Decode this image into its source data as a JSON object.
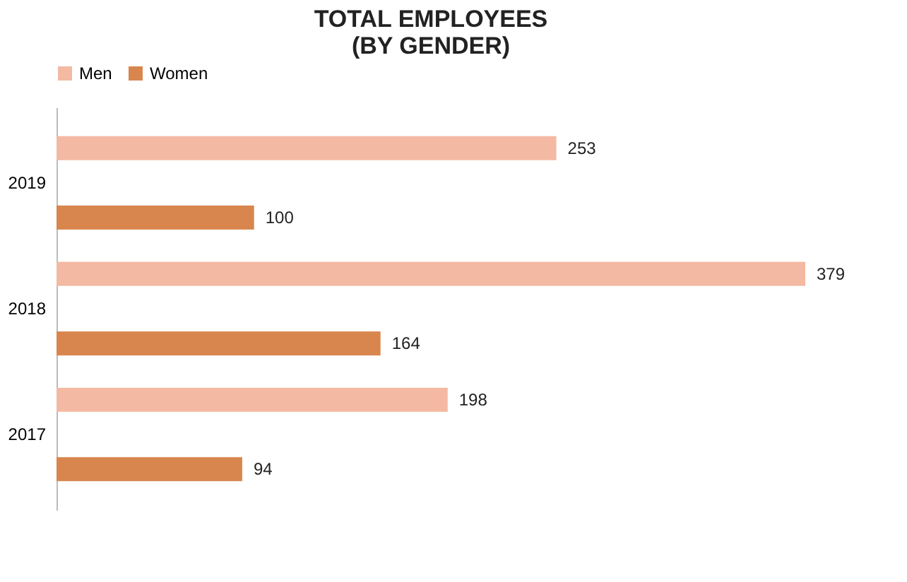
{
  "chart_data": {
    "type": "bar",
    "orientation": "horizontal",
    "title": "TOTAL EMPLOYEES\n(BY GENDER)",
    "categories": [
      "2019",
      "2018",
      "2017"
    ],
    "series": [
      {
        "name": "Men",
        "color": "#f4b9a2",
        "values": [
          253,
          379,
          198
        ]
      },
      {
        "name": "Women",
        "color": "#d8864e",
        "values": [
          100,
          164,
          94
        ]
      }
    ],
    "data_labels": true,
    "legend": "top",
    "grid": false
  }
}
